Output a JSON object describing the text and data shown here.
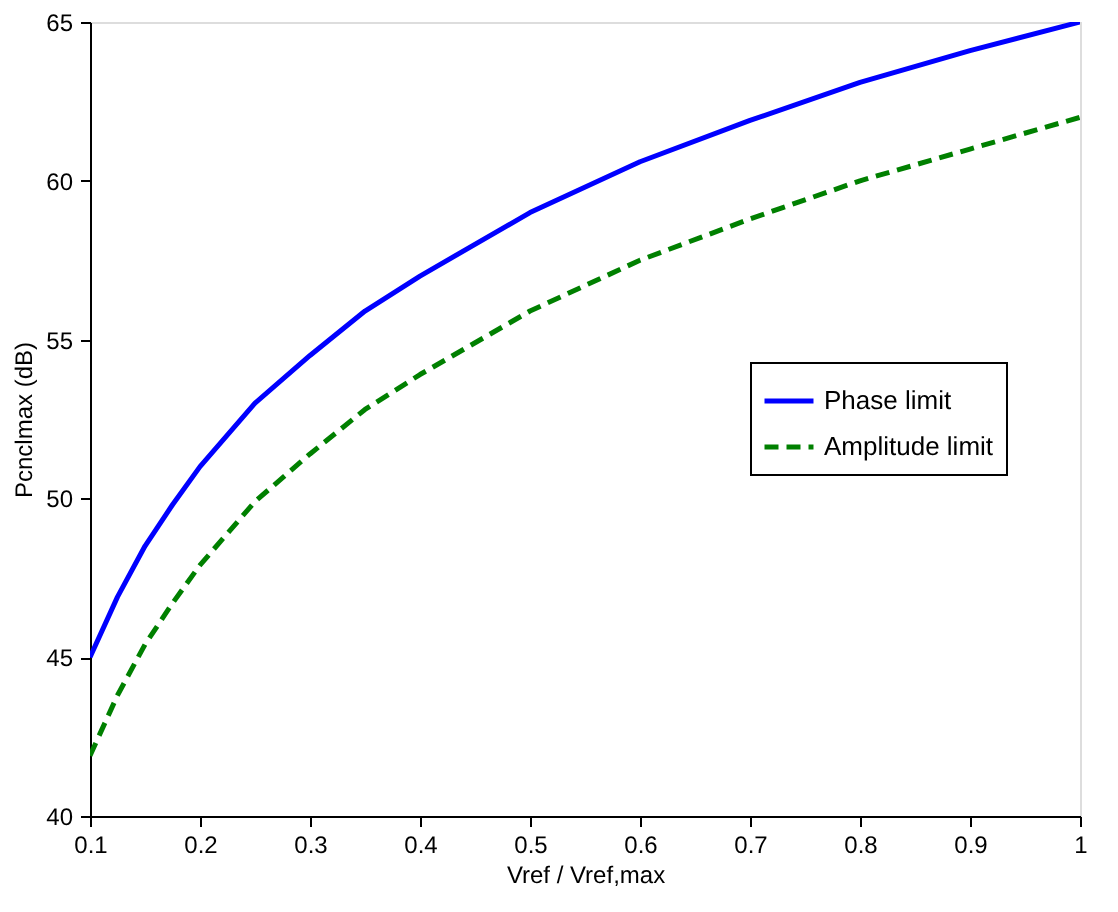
{
  "chart_data": {
    "type": "line",
    "xlabel": "Vref / Vref,max",
    "ylabel": "Pcnclmax (dB)",
    "x": [
      0.1,
      0.125,
      0.15,
      0.175,
      0.2,
      0.25,
      0.3,
      0.35,
      0.4,
      0.5,
      0.6,
      0.7,
      0.8,
      0.9,
      1.0
    ],
    "series": [
      {
        "name": "Phase limit",
        "color": "#0000ff",
        "line_style": "solid",
        "values": [
          45,
          46.9,
          48.5,
          49.8,
          51.0,
          53.0,
          54.5,
          55.9,
          57.0,
          59.0,
          60.6,
          61.9,
          63.1,
          64.1,
          65
        ]
      },
      {
        "name": "Amplitude limit",
        "color": "#008000",
        "line_style": "dashed",
        "values": [
          41.9,
          43.8,
          45.4,
          46.7,
          47.9,
          49.9,
          51.4,
          52.8,
          53.9,
          55.9,
          57.5,
          58.8,
          60.0,
          61.0,
          62
        ]
      }
    ],
    "xlim": [
      0.1,
      1
    ],
    "xticks": [
      0.1,
      0.2,
      0.3,
      0.4,
      0.5,
      0.6,
      0.7,
      0.8,
      0.9,
      1
    ],
    "ylim": [
      40,
      65
    ],
    "yticks": [
      40,
      45,
      50,
      55,
      60,
      65
    ],
    "grid": false,
    "legend": "right",
    "marker": "none"
  }
}
